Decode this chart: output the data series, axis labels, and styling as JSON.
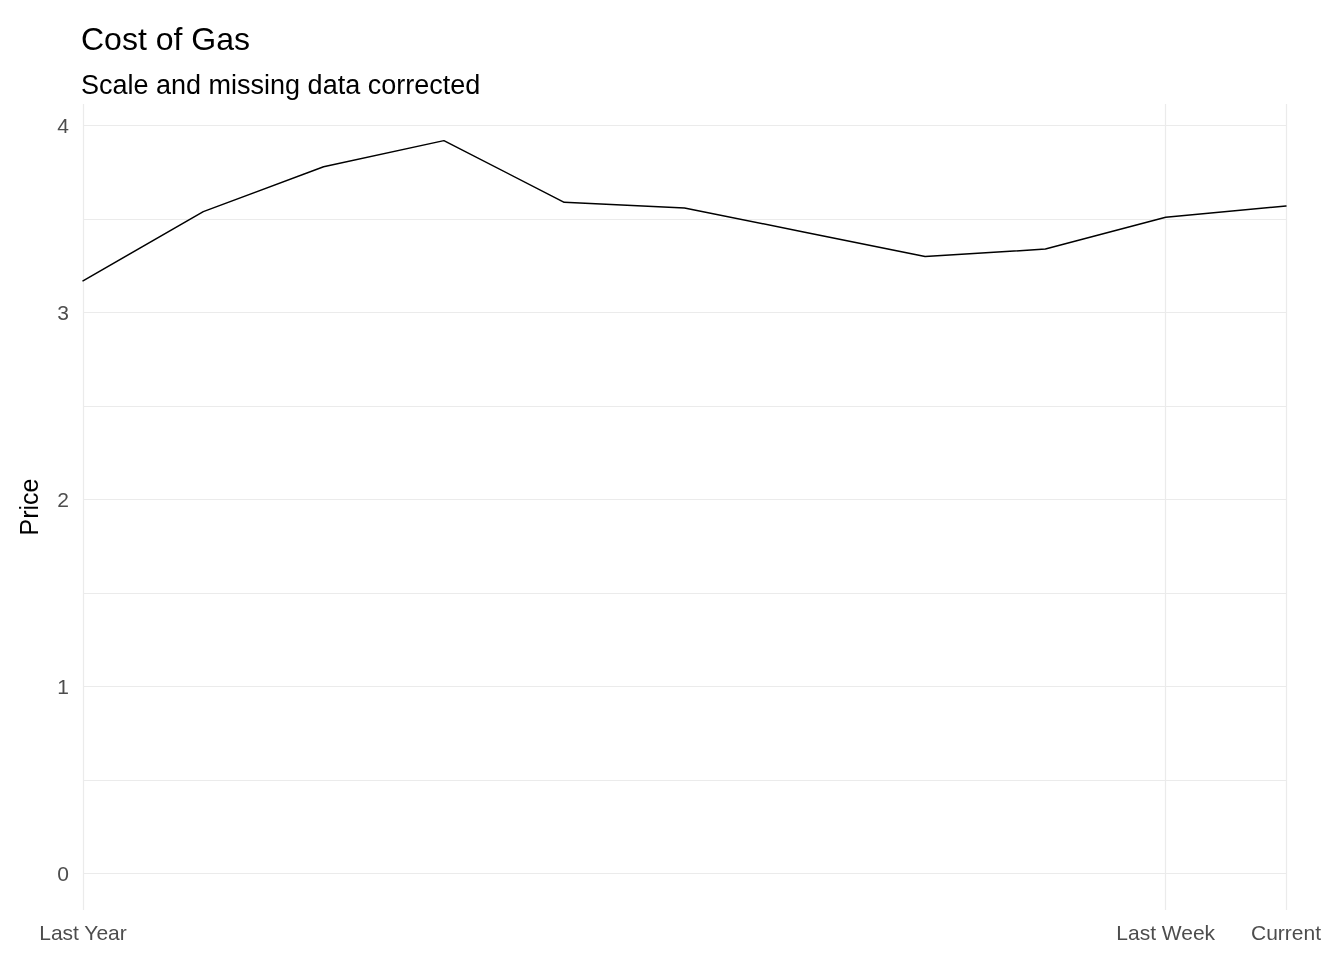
{
  "chart_data": {
    "type": "line",
    "title": "Cost of Gas",
    "subtitle": "Scale and missing data corrected",
    "ylabel": "Price",
    "categories": [
      "Last Year",
      null,
      null,
      null,
      null,
      null,
      null,
      null,
      null,
      "Last Week",
      "Current"
    ],
    "series": [
      {
        "color": "#000000",
        "values": [
          3.17,
          3.54,
          3.78,
          3.92,
          3.59,
          3.56,
          3.43,
          3.3,
          3.34,
          3.51,
          3.57
        ]
      }
    ],
    "ylim": [
      -0.196,
      4.116
    ],
    "yticks": [
      0,
      1,
      2,
      3,
      4
    ],
    "grid": true,
    "marker": "none",
    "line_style": "solid"
  }
}
